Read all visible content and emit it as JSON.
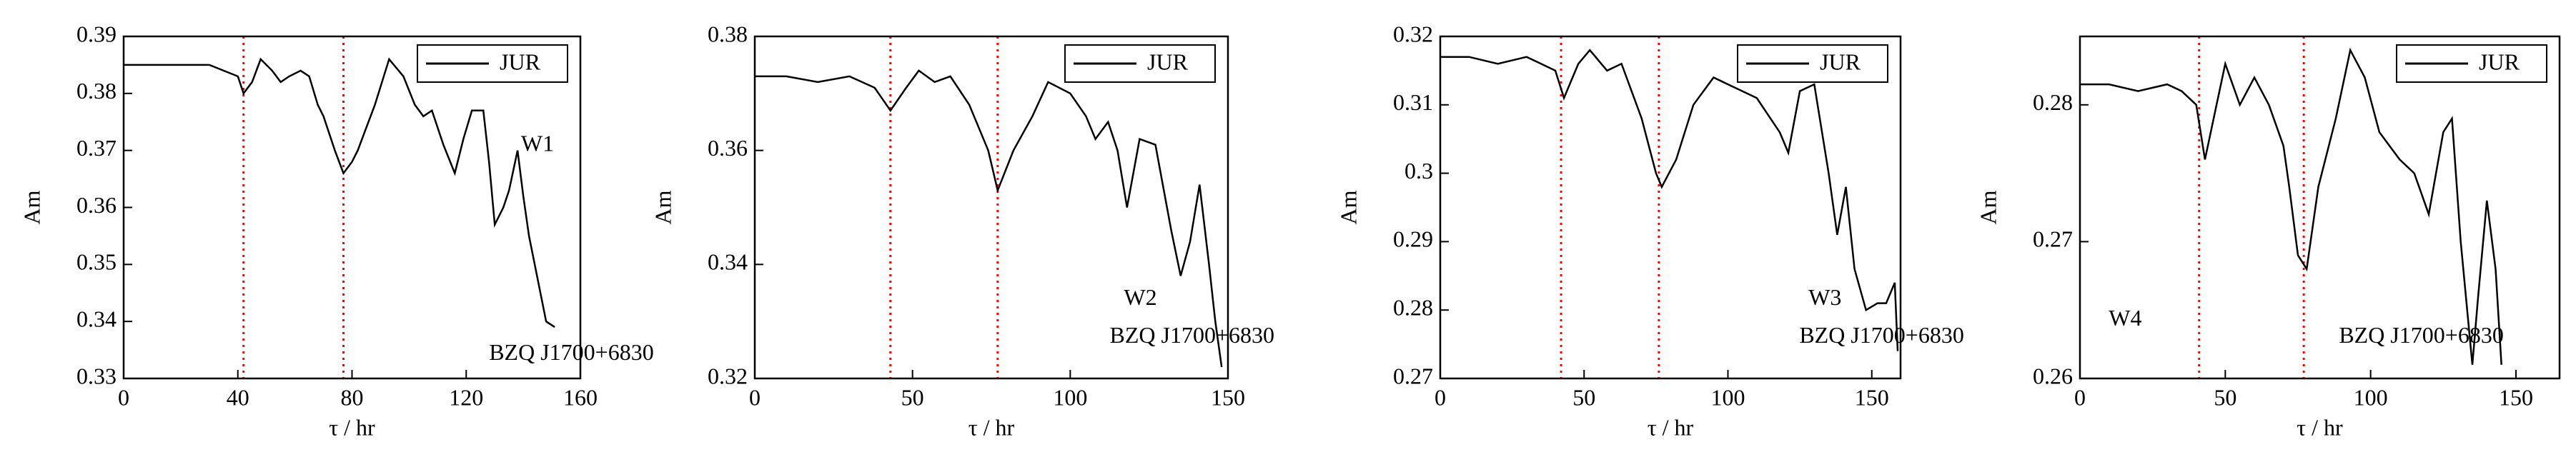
{
  "chart_data": [
    {
      "type": "line",
      "xlabel": "τ / hr",
      "ylabel": "Am",
      "annotations": [
        "W1",
        "BZQ J1700+6830"
      ],
      "x": [
        0,
        10,
        20,
        30,
        35,
        40,
        42,
        45,
        48,
        52,
        55,
        58,
        62,
        65,
        68,
        70,
        74,
        77,
        80,
        82,
        85,
        88,
        93,
        98,
        102,
        105,
        108,
        112,
        116,
        119,
        122,
        126,
        128,
        130,
        133,
        135,
        138,
        140,
        142,
        144,
        146,
        148,
        151
      ],
      "series": [
        {
          "name": "JUR",
          "color": "#000000",
          "values": [
            0.385,
            0.385,
            0.385,
            0.385,
            0.384,
            0.383,
            0.38,
            0.382,
            0.386,
            0.384,
            0.382,
            0.383,
            0.384,
            0.383,
            0.378,
            0.376,
            0.37,
            0.366,
            0.368,
            0.37,
            0.374,
            0.378,
            0.386,
            0.383,
            0.378,
            0.376,
            0.377,
            0.371,
            0.366,
            0.372,
            0.377,
            0.377,
            0.368,
            0.357,
            0.36,
            0.363,
            0.37,
            0.362,
            0.355,
            0.35,
            0.345,
            0.34,
            0.339
          ]
        }
      ],
      "vlines": [
        42,
        77
      ],
      "vline_color": "#ff0000",
      "xlim": [
        0,
        160
      ],
      "xticks": [
        0,
        40,
        80,
        120,
        160
      ],
      "ylim": [
        0.33,
        0.39
      ],
      "yticks": [
        0.33,
        0.34,
        0.35,
        0.36,
        0.37,
        0.38,
        0.39
      ]
    },
    {
      "type": "line",
      "xlabel": "τ / hr",
      "ylabel": "Am",
      "annotations": [
        "W2",
        "BZQ J1700+6830"
      ],
      "x": [
        0,
        10,
        20,
        30,
        38,
        43,
        48,
        52,
        57,
        62,
        68,
        74,
        77,
        82,
        88,
        93,
        100,
        105,
        108,
        112,
        115,
        118,
        122,
        127,
        132,
        135,
        138,
        141,
        144,
        146,
        148
      ],
      "series": [
        {
          "name": "JUR",
          "color": "#000000",
          "values": [
            0.373,
            0.373,
            0.372,
            0.373,
            0.371,
            0.367,
            0.371,
            0.374,
            0.372,
            0.373,
            0.368,
            0.36,
            0.353,
            0.36,
            0.366,
            0.372,
            0.37,
            0.366,
            0.362,
            0.365,
            0.36,
            0.35,
            0.362,
            0.361,
            0.346,
            0.338,
            0.344,
            0.354,
            0.34,
            0.33,
            0.322
          ]
        }
      ],
      "vlines": [
        43,
        77
      ],
      "vline_color": "#ff0000",
      "xlim": [
        0,
        150
      ],
      "xticks": [
        0,
        50,
        100,
        150
      ],
      "ylim": [
        0.32,
        0.38
      ],
      "yticks": [
        0.32,
        0.34,
        0.36,
        0.38
      ]
    },
    {
      "type": "line",
      "xlabel": "τ / hr",
      "ylabel": "Am",
      "annotations": [
        "W3",
        "BZQ J1700+6830"
      ],
      "x": [
        0,
        10,
        20,
        30,
        35,
        40,
        43,
        48,
        52,
        58,
        63,
        70,
        75,
        77,
        82,
        88,
        95,
        100,
        110,
        118,
        121,
        125,
        130,
        135,
        138,
        141,
        144,
        148,
        152,
        155,
        158,
        159
      ],
      "series": [
        {
          "name": "JUR",
          "color": "#000000",
          "values": [
            0.317,
            0.317,
            0.316,
            0.317,
            0.316,
            0.315,
            0.311,
            0.316,
            0.318,
            0.315,
            0.316,
            0.308,
            0.3,
            0.298,
            0.302,
            0.31,
            0.314,
            0.313,
            0.311,
            0.306,
            0.303,
            0.312,
            0.313,
            0.3,
            0.291,
            0.298,
            0.286,
            0.28,
            0.281,
            0.281,
            0.284,
            0.274
          ]
        }
      ],
      "vlines": [
        42,
        76
      ],
      "vline_color": "#ff0000",
      "xlim": [
        0,
        160
      ],
      "xticks": [
        0,
        50,
        100,
        150
      ],
      "ylim": [
        0.27,
        0.32
      ],
      "yticks": [
        0.27,
        0.28,
        0.29,
        0.3,
        0.31,
        0.32
      ]
    },
    {
      "type": "line",
      "xlabel": "τ / hr",
      "ylabel": "Am",
      "annotations": [
        "W4",
        "BZQ J1700+6830"
      ],
      "x": [
        0,
        10,
        20,
        30,
        35,
        40,
        43,
        47,
        50,
        55,
        60,
        65,
        70,
        72,
        75,
        78,
        82,
        88,
        93,
        98,
        103,
        110,
        115,
        120,
        125,
        128,
        131,
        135,
        137,
        140,
        143,
        145
      ],
      "series": [
        {
          "name": "JUR",
          "color": "#000000",
          "values": [
            0.2815,
            0.2815,
            0.281,
            0.2815,
            0.281,
            0.28,
            0.276,
            0.28,
            0.283,
            0.28,
            0.282,
            0.28,
            0.277,
            0.274,
            0.269,
            0.268,
            0.274,
            0.279,
            0.284,
            0.282,
            0.278,
            0.276,
            0.275,
            0.272,
            0.278,
            0.279,
            0.27,
            0.261,
            0.266,
            0.273,
            0.268,
            0.261
          ]
        }
      ],
      "vlines": [
        41,
        77
      ],
      "vline_color": "#ff0000",
      "xlim": [
        0,
        165
      ],
      "xticks": [
        0,
        50,
        100,
        150
      ],
      "ylim": [
        0.26,
        0.285
      ],
      "yticks": [
        0.26,
        0.27,
        0.28
      ]
    }
  ]
}
